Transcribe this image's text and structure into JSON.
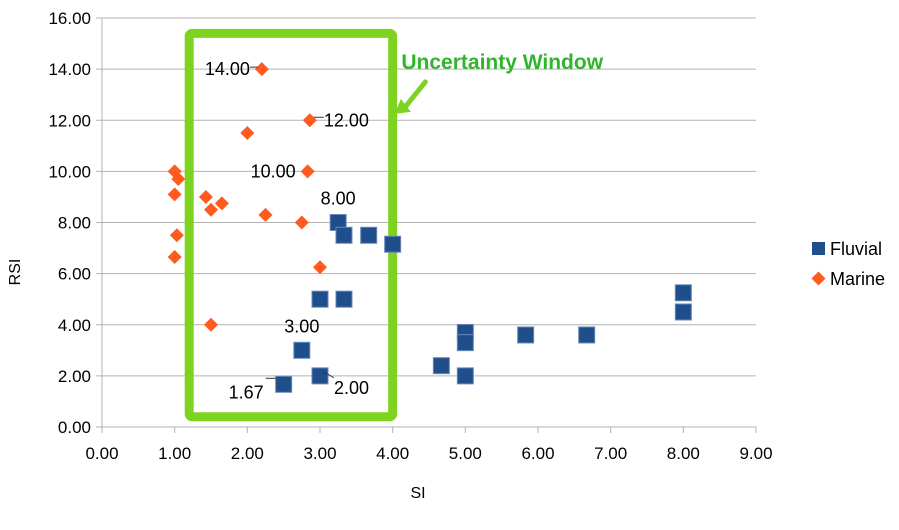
{
  "chart_data": {
    "type": "scatter",
    "title": "",
    "xlabel": "SI",
    "ylabel": "RSI",
    "xlim": [
      0,
      9
    ],
    "ylim": [
      0,
      16
    ],
    "x_ticks": [
      "0.00",
      "1.00",
      "2.00",
      "3.00",
      "4.00",
      "5.00",
      "6.00",
      "7.00",
      "8.00",
      "9.00"
    ],
    "y_ticks": [
      "0.00",
      "2.00",
      "4.00",
      "6.00",
      "8.00",
      "10.00",
      "12.00",
      "14.00",
      "16.00"
    ],
    "grid": "horizontal",
    "legend_position": "right",
    "series": [
      {
        "name": "Fluvial",
        "marker": "square",
        "color": "#1f4e8c",
        "points": [
          [
            2.5,
            1.67
          ],
          [
            2.75,
            3.0
          ],
          [
            3.0,
            2.0
          ],
          [
            3.0,
            5.0
          ],
          [
            3.33,
            5.0
          ],
          [
            3.25,
            8.0
          ],
          [
            3.33,
            7.5
          ],
          [
            3.67,
            7.5
          ],
          [
            4.0,
            7.15
          ],
          [
            4.67,
            2.4
          ],
          [
            5.0,
            3.7
          ],
          [
            5.0,
            3.3
          ],
          [
            5.0,
            2.0
          ],
          [
            5.83,
            3.6
          ],
          [
            6.67,
            3.6
          ],
          [
            8.0,
            5.25
          ],
          [
            8.0,
            4.5
          ]
        ]
      },
      {
        "name": "Marine",
        "marker": "diamond",
        "color": "#ff5a1f",
        "points": [
          [
            1.0,
            10.0
          ],
          [
            1.05,
            9.7
          ],
          [
            1.0,
            9.1
          ],
          [
            1.03,
            7.5
          ],
          [
            1.0,
            6.65
          ],
          [
            1.43,
            9.0
          ],
          [
            1.5,
            8.5
          ],
          [
            1.65,
            8.75
          ],
          [
            1.5,
            4.0
          ],
          [
            2.0,
            11.5
          ],
          [
            2.2,
            14.0
          ],
          [
            2.25,
            8.3
          ],
          [
            2.75,
            8.0
          ],
          [
            2.83,
            10.0
          ],
          [
            2.86,
            12.0
          ],
          [
            3.0,
            6.25
          ]
        ]
      }
    ],
    "annotations": [
      {
        "text": "14.00",
        "target": [
          2.2,
          14.0
        ],
        "anchor": "left"
      },
      {
        "text": "12.00",
        "target": [
          2.86,
          12.0
        ],
        "anchor": "right"
      },
      {
        "text": "10.00",
        "target": [
          2.83,
          10.0
        ],
        "anchor": "left"
      },
      {
        "text": "8.00",
        "target": [
          3.25,
          8.0
        ],
        "anchor": "above"
      },
      {
        "text": "3.00",
        "target": [
          2.75,
          3.0
        ],
        "anchor": "above"
      },
      {
        "text": "1.67",
        "target": [
          2.5,
          1.67
        ],
        "anchor": "left-below"
      },
      {
        "text": "2.00",
        "target": [
          3.0,
          2.0
        ],
        "anchor": "right-below"
      }
    ],
    "highlight": {
      "label": "Uncertainty Window",
      "x_range": [
        1.2,
        4.0
      ],
      "y_range": [
        0.4,
        15.4
      ],
      "color": "#7ed321",
      "label_color": "#2fb62b"
    }
  }
}
